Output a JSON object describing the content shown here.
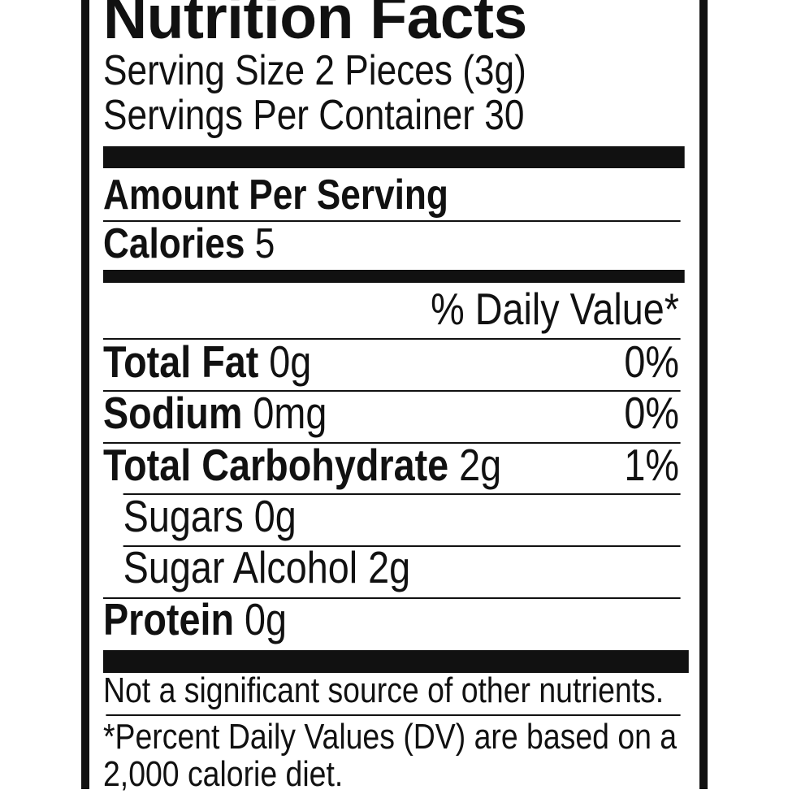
{
  "label": {
    "title": "Nutrition Facts",
    "serving_size": "Serving Size 2 Pieces (3g)",
    "servings_per_container": "Servings Per Container 30",
    "amount_per_serving": "Amount Per Serving",
    "calories_label": "Calories",
    "calories_value": "5",
    "daily_value_header": "% Daily Value*",
    "nutrients": [
      {
        "name": "Total Fat",
        "amount": "0g",
        "dv": "0%"
      },
      {
        "name": "Sodium",
        "amount": "0mg",
        "dv": "0%"
      },
      {
        "name": "Total Carbohydrate",
        "amount": "2g",
        "dv": "1%"
      },
      {
        "name": "Sugars 0g"
      },
      {
        "name": "Sugar Alcohol 2g"
      },
      {
        "name": "Protein",
        "amount": "0g"
      }
    ],
    "footnote_1": "Not a significant source of other nutrients.",
    "footnote_2": "*Percent Daily Values (DV) are based on a",
    "footnote_3": "2,000 calorie diet."
  }
}
